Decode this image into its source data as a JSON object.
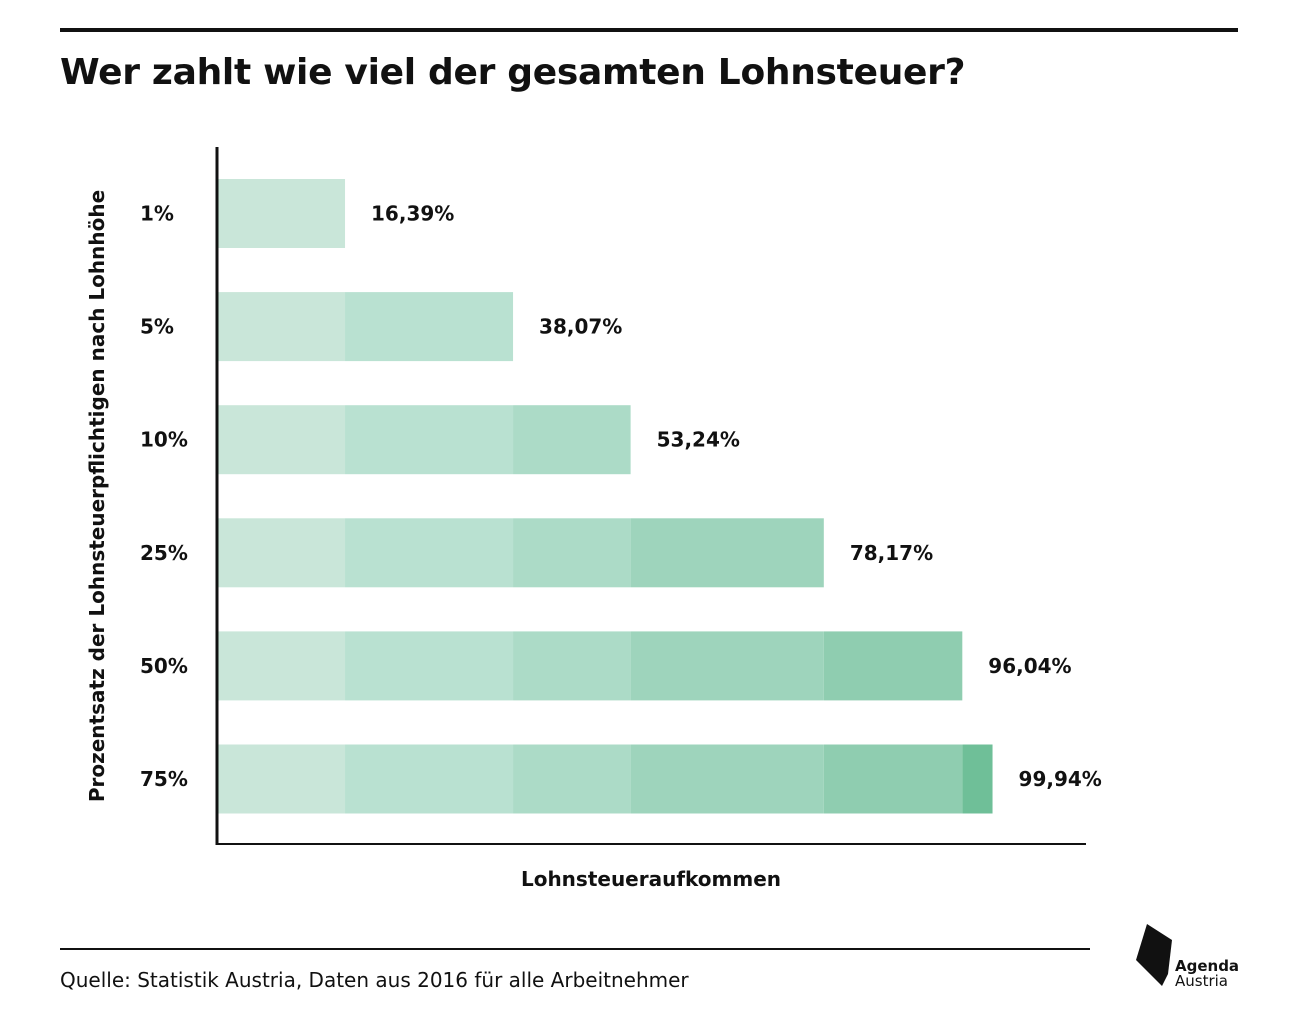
{
  "header": {
    "title": "Wer zahlt wie viel der gesamten Lohnsteuer?"
  },
  "chart_data": {
    "type": "bar",
    "orientation": "horizontal",
    "stacked": true,
    "title": "Wer zahlt wie viel der gesamten Lohnsteuer?",
    "xlabel": "Lohnsteueraufkommen",
    "ylabel": "Prozentsatz der Lohnsteuerpflichtigen nach Lohnhöhe",
    "xlim": [
      0,
      112
    ],
    "categories": [
      "1%",
      "5%",
      "10%",
      "25%",
      "50%",
      "75%"
    ],
    "values": [
      16.39,
      38.07,
      53.24,
      78.17,
      96.04,
      99.94
    ],
    "value_labels": [
      "16,39%",
      "38,07%",
      "53,24%",
      "78,17%",
      "96,04%",
      "99,94%"
    ],
    "segment_colors": [
      "#c9e6d9",
      "#b9e1d1",
      "#acdbc7",
      "#9ed4bc",
      "#8fcdb0",
      "#6fbf98"
    ],
    "grid": false,
    "legend": "none"
  },
  "footer": {
    "source": "Quelle: Statistik Austria, Daten aus 2016 für alle Arbeitnehmer"
  },
  "logo": {
    "line1": "Agenda",
    "line2": "Austria"
  }
}
